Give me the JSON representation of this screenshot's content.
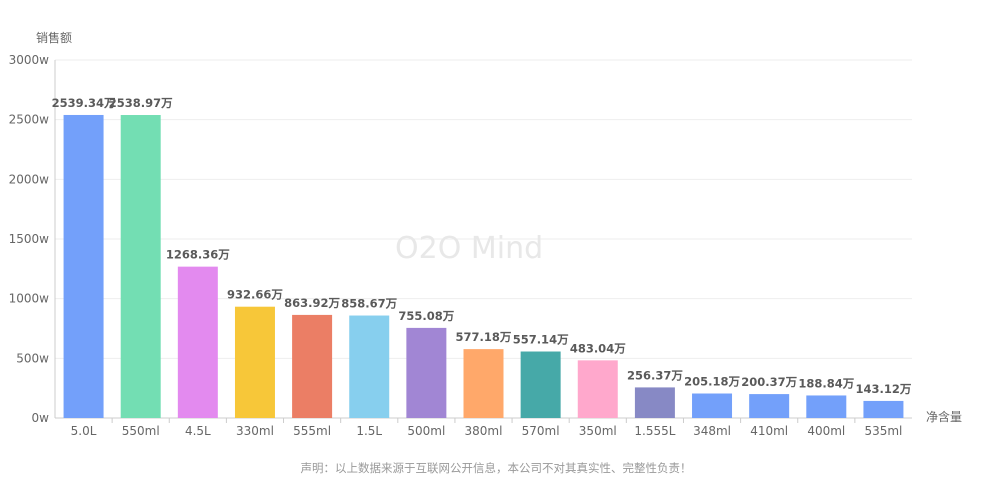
{
  "chart_data": {
    "type": "bar",
    "ylabel": "销售额",
    "xlabel": "净含量",
    "ylim": [
      0,
      3000
    ],
    "yticks": [
      "0w",
      "500w",
      "1000w",
      "1500w",
      "2000w",
      "2500w",
      "3000w"
    ],
    "ytick_values": [
      0,
      500,
      1000,
      1500,
      2000,
      2500,
      3000
    ],
    "categories": [
      "5.0L",
      "550ml",
      "4.5L",
      "330ml",
      "555ml",
      "1.5L",
      "500ml",
      "380ml",
      "570ml",
      "350ml",
      "1.555L",
      "348ml",
      "410ml",
      "400ml",
      "535ml"
    ],
    "values": [
      2539.34,
      2538.97,
      1268.36,
      932.66,
      863.92,
      858.67,
      755.08,
      577.18,
      557.14,
      483.04,
      256.37,
      205.18,
      200.37,
      188.84,
      143.12
    ],
    "value_labels": [
      "2539.34万",
      "2538.97万",
      "1268.36万",
      "932.66万",
      "863.92万",
      "858.67万",
      "755.08万",
      "577.18万",
      "557.14万",
      "483.04万",
      "256.37万",
      "205.18万",
      "200.37万",
      "188.84万",
      "143.12万"
    ],
    "colors": [
      "#73a0fa",
      "#73deb3",
      "#e38aef",
      "#f7c739",
      "#eb7e65",
      "#87cfee",
      "#a186d4",
      "#ffa86a",
      "#46a9a8",
      "#ffa8cc",
      "#8789c5",
      "#73a0fa",
      "#73a0fa",
      "#73a0fa",
      "#73a0fa"
    ],
    "grid": true,
    "legend": "none"
  },
  "watermark": "O2O Mind",
  "footnote": "声明：以上数据来源于互联网公开信息，本公司不对其真实性、完整性负责！"
}
